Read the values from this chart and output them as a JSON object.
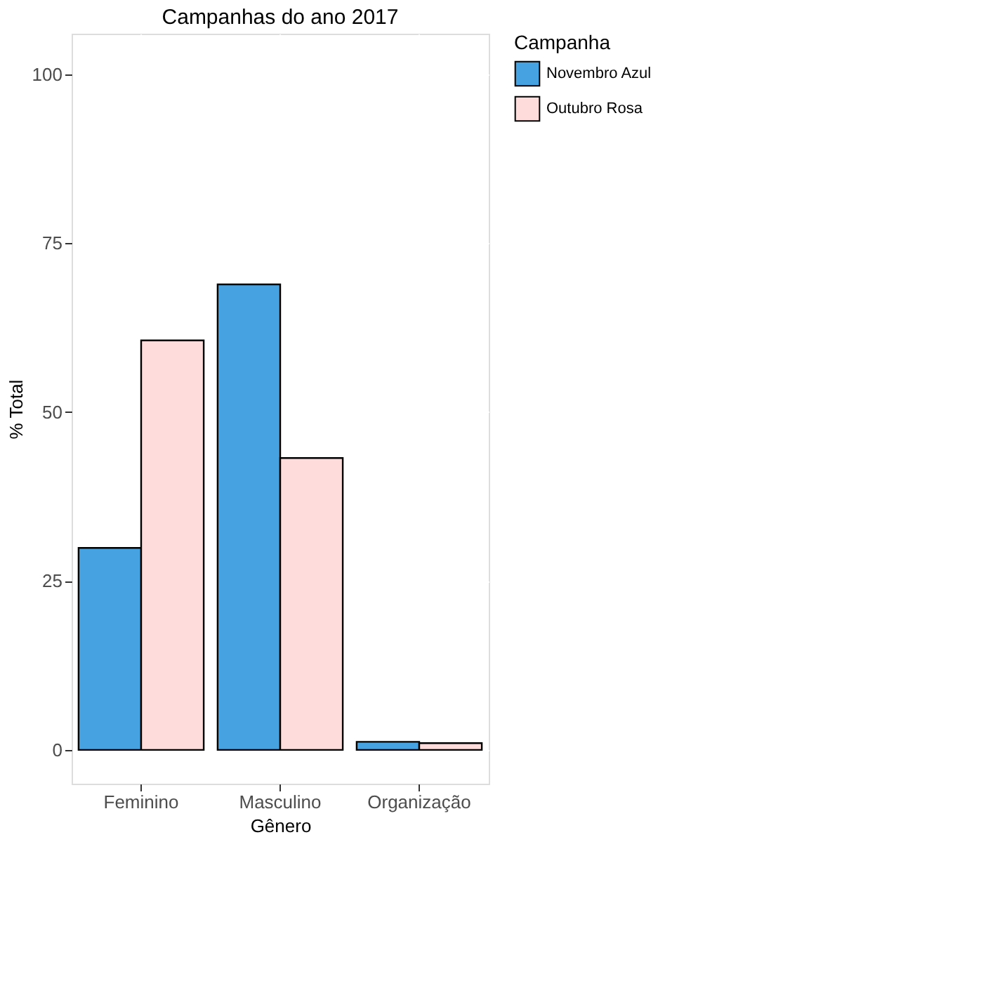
{
  "chart_data": {
    "type": "bar",
    "title": "Campanhas do ano 2017",
    "xlabel": "Gênero",
    "ylabel": "% Total",
    "legend_title": "Campanha",
    "categories": [
      "Feminino",
      "Masculino",
      "Organização"
    ],
    "series": [
      {
        "name": "Novembro Azul",
        "color": "#46a2e0",
        "values": [
          29.9,
          68.9,
          1.2
        ]
      },
      {
        "name": "Outubro Rosa",
        "color": "#fddcdb",
        "values": [
          60.6,
          43.2,
          1.0
        ]
      }
    ],
    "ylim": [
      -5,
      106
    ],
    "yticks": [
      0,
      25,
      50,
      75,
      100
    ],
    "grid": true,
    "legend": "right"
  }
}
